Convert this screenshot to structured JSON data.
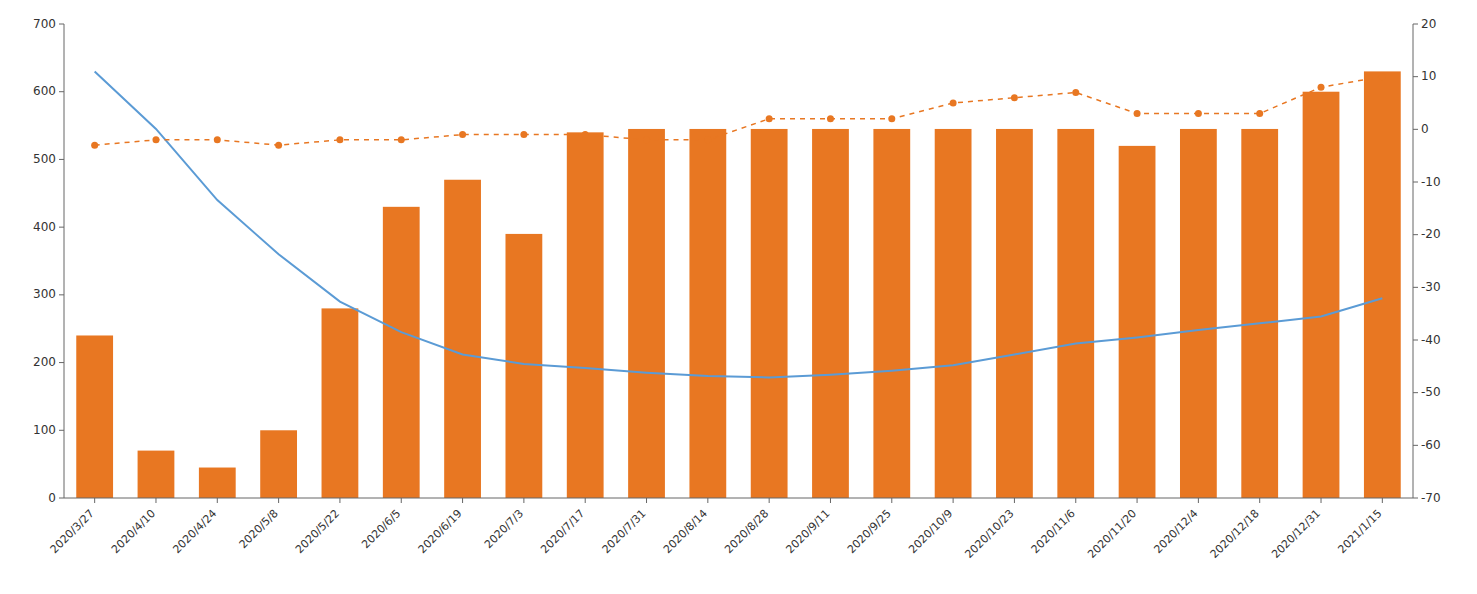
{
  "chart_data": {
    "type": "bar",
    "categories": [
      "2020/3/27",
      "2020/4/10",
      "2020/4/24",
      "2020/5/8",
      "2020/5/22",
      "2020/6/5",
      "2020/6/19",
      "2020/7/3",
      "2020/7/17",
      "2020/7/31",
      "2020/8/14",
      "2020/8/28",
      "2020/9/11",
      "2020/9/25",
      "2020/10/9",
      "2020/10/23",
      "2020/11/6",
      "2020/11/20",
      "2020/12/4",
      "2020/12/18",
      "2020/12/31",
      "2021/1/15"
    ],
    "series": [
      {
        "type": "bar",
        "color": "#E87722",
        "values": [
          240,
          70,
          45,
          100,
          280,
          430,
          470,
          390,
          540,
          545,
          545,
          545,
          545,
          545,
          545,
          545,
          545,
          520,
          545,
          545,
          600,
          630
        ]
      },
      {
        "type": "line",
        "color": "#5B9BD5",
        "values": [
          630,
          545,
          440,
          360,
          290,
          245,
          212,
          198,
          192,
          185,
          180,
          178,
          182,
          188,
          196,
          212,
          228,
          237,
          248,
          258,
          268,
          295
        ]
      },
      {
        "type": "line",
        "color": "#E87722",
        "marker": "circle",
        "line_style": "dashed",
        "axis": "y2",
        "values": [
          -3,
          -2,
          -2,
          -3,
          -2,
          -2,
          -1,
          -1,
          -1,
          -2,
          -2,
          2,
          2,
          2,
          5,
          6,
          7,
          3,
          3,
          3,
          8,
          10
        ]
      }
    ],
    "ylim": [
      0,
      700
    ],
    "yticks": [
      0,
      100,
      200,
      300,
      400,
      500,
      600,
      700
    ],
    "y2lim": [
      -70,
      20
    ],
    "y2ticks": [
      -70,
      -60,
      -50,
      -40,
      -30,
      -20,
      -10,
      0,
      10,
      20
    ],
    "grid": false
  }
}
